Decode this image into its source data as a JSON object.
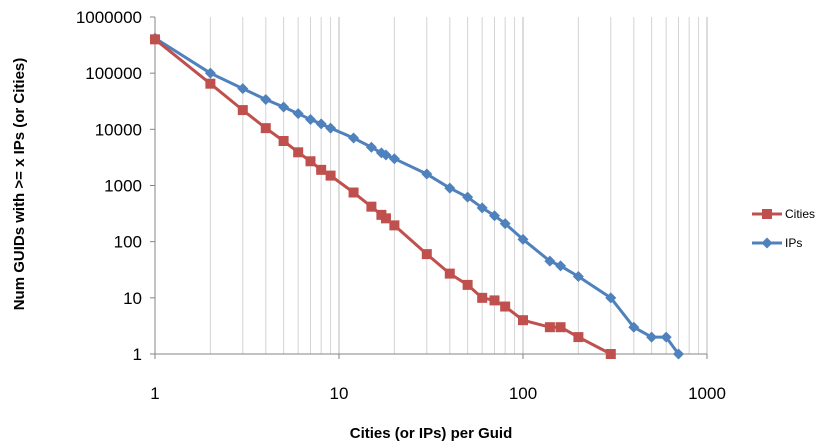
{
  "chart_data": {
    "type": "line",
    "x_scale": "log",
    "y_scale": "log",
    "xlabel": "Cities (or IPs) per Guid",
    "ylabel": "Num GUIDs with >= x IPs (or Cities)",
    "xlim": [
      1,
      1000
    ],
    "ylim": [
      1,
      1000000
    ],
    "x_ticks": [
      "1",
      "10",
      "100",
      "1000"
    ],
    "y_ticks": [
      "1",
      "10",
      "100",
      "1000",
      "10000",
      "100000",
      "1000000"
    ],
    "grid": "x-major-and-minor",
    "legend_position": "right",
    "series": [
      {
        "name": "Cities",
        "color": "#c0504d",
        "marker": "square",
        "x": [
          1,
          2,
          3,
          4,
          5,
          6,
          7,
          8,
          9,
          12,
          15,
          17,
          18,
          20,
          30,
          40,
          50,
          60,
          70,
          80,
          100,
          140,
          160,
          200,
          300
        ],
        "y": [
          400000,
          65000,
          22000,
          10500,
          6200,
          3900,
          2700,
          1900,
          1500,
          750,
          420,
          300,
          260,
          195,
          60,
          27,
          17,
          10,
          9,
          7,
          4,
          3,
          3,
          2,
          1
        ]
      },
      {
        "name": "IPs",
        "color": "#4f81bd",
        "marker": "diamond",
        "x": [
          1,
          2,
          3,
          4,
          5,
          6,
          7,
          8,
          9,
          12,
          15,
          17,
          18,
          20,
          30,
          40,
          50,
          60,
          70,
          80,
          100,
          140,
          160,
          200,
          300,
          400,
          500,
          600,
          700
        ],
        "y": [
          420000,
          100000,
          53000,
          34000,
          25000,
          19000,
          15000,
          12500,
          10500,
          7000,
          4800,
          3800,
          3500,
          3000,
          1600,
          900,
          620,
          400,
          290,
          210,
          110,
          45,
          37,
          24,
          10,
          3,
          2,
          2,
          1
        ]
      }
    ]
  }
}
